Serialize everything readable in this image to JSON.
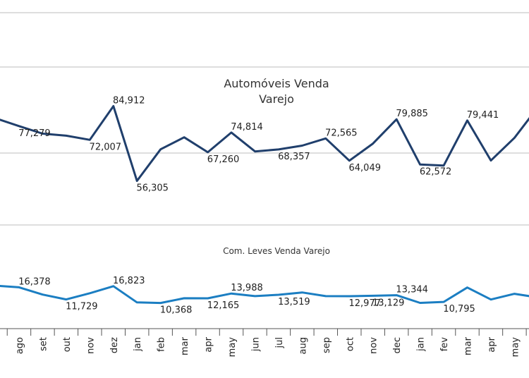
{
  "chart_data": [
    {
      "type": "line",
      "title": "Automóveis Venda Varejo",
      "color": "#203f6c",
      "categories": [
        null,
        "ago",
        "set",
        "out",
        "nov",
        "dez",
        "jan",
        "feb",
        "mar",
        "apr",
        "may",
        "jun",
        "jul",
        "aug",
        "sep",
        "oct",
        "nov",
        "dec",
        "jan",
        "fev",
        "mar",
        "apr",
        "may",
        null
      ],
      "values": [
        80300,
        77279,
        74400,
        73600,
        72007,
        84912,
        56305,
        68400,
        73000,
        67260,
        74814,
        67600,
        68357,
        69800,
        72565,
        64049,
        70600,
        79885,
        62572,
        62200,
        79441,
        64100,
        72800,
        84600
      ],
      "value_labels": [
        null,
        "77,279",
        null,
        null,
        "72,007",
        "84,912",
        "56,305",
        null,
        null,
        "67,260",
        "74,814",
        null,
        "68,357",
        null,
        "72,565",
        "64,049",
        null,
        "79,885",
        "62,572",
        null,
        "79,441",
        null,
        null,
        null
      ],
      "ylim": [
        37000,
        118000
      ]
    },
    {
      "type": "line",
      "title": "Com. Leves Venda Varejo",
      "color": "#1b7ec2",
      "categories": [
        null,
        "ago",
        "set",
        "out",
        "nov",
        "dez",
        "jan",
        "feb",
        "mar",
        "apr",
        "may",
        "jun",
        "jul",
        "aug",
        "sep",
        "oct",
        "nov",
        "dec",
        "jan",
        "fev",
        "mar",
        "apr",
        "may",
        null
      ],
      "values": [
        17000,
        16378,
        13600,
        11729,
        14100,
        16823,
        10600,
        10368,
        12200,
        12165,
        13988,
        13000,
        13519,
        14400,
        13000,
        12977,
        13129,
        13344,
        10400,
        10795,
        16300,
        11700,
        13900,
        12500
      ],
      "value_labels": [
        null,
        "16,378",
        null,
        "11,729",
        null,
        "16,823",
        null,
        "10,368",
        null,
        "12,165",
        "13,988",
        null,
        "13,519",
        null,
        null,
        "12,977",
        "13,129",
        "13,344",
        null,
        "10,795",
        null,
        null,
        null,
        null
      ],
      "ylim": [
        0,
        30000
      ]
    }
  ]
}
